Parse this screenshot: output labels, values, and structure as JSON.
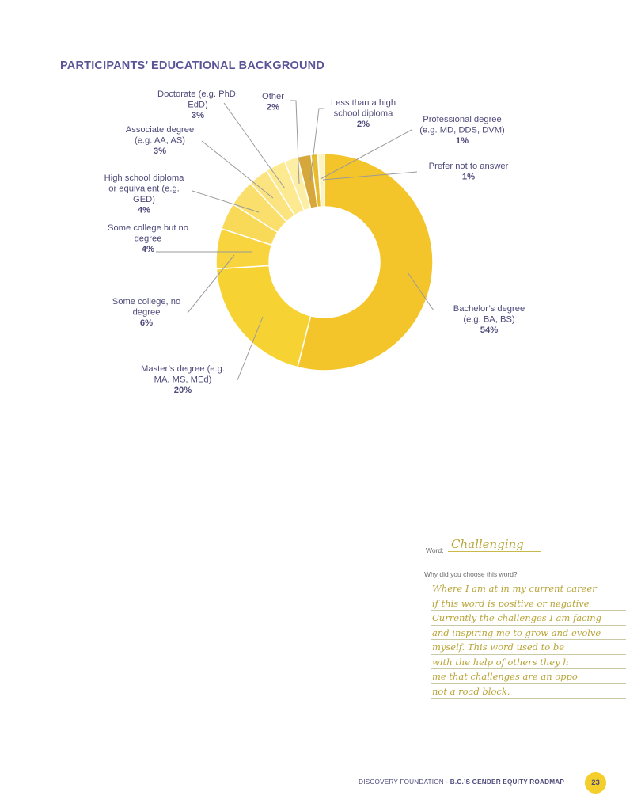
{
  "page": {
    "title": "PARTICIPANTS’ EDUCATIONAL BACKGROUND",
    "footer_org": "DISCOVERY FOUNDATION",
    "footer_sep": " - ",
    "footer_doc": "B.C.’S GENDER EQUITY ROADMAP",
    "page_number": "23"
  },
  "chart_data": {
    "type": "pie",
    "donut": true,
    "title": "PARTICIPANTS’ EDUCATIONAL BACKGROUND",
    "slices": [
      {
        "label_lines": [
          "Bachelor’s degree",
          "(e.g. BA, BS)"
        ],
        "pct_label": "54%",
        "value": 54,
        "color": "#f4c52b"
      },
      {
        "label_lines": [
          "Master’s degree (e.g.",
          "MA, MS, MEd)"
        ],
        "pct_label": "20%",
        "value": 20,
        "color": "#f7d233"
      },
      {
        "label_lines": [
          "Some college, no",
          "degree"
        ],
        "pct_label": "6%",
        "value": 6,
        "color": "#f8d43e"
      },
      {
        "label_lines": [
          "Some college but no",
          "degree"
        ],
        "pct_label": "4%",
        "value": 4,
        "color": "#f9da58"
      },
      {
        "label_lines": [
          "High school diploma",
          "or equivalent (e.g.",
          "GED)"
        ],
        "pct_label": "4%",
        "value": 4,
        "color": "#fadf6c"
      },
      {
        "label_lines": [
          "Associate degree",
          "(e.g. AA, AS)"
        ],
        "pct_label": "3%",
        "value": 3,
        "color": "#fbe47f"
      },
      {
        "label_lines": [
          "Doctorate (e.g. PhD,",
          "EdD)"
        ],
        "pct_label": "3%",
        "value": 3,
        "color": "#fce990"
      },
      {
        "label_lines": [
          "Other"
        ],
        "pct_label": "2%",
        "value": 2,
        "color": "#fdeea6"
      },
      {
        "label_lines": [
          "Less than a high",
          "school diploma"
        ],
        "pct_label": "2%",
        "value": 2,
        "color": "#d6a73a"
      },
      {
        "label_lines": [
          "Professional degree",
          "(e.g. MD, DDS, DVM)"
        ],
        "pct_label": "1%",
        "value": 1,
        "color": "#e8bb2c"
      },
      {
        "label_lines": [
          "Prefer not to answer"
        ],
        "pct_label": "1%",
        "value": 1,
        "color": "#fdf3c2"
      }
    ]
  },
  "card": {
    "word_label": "Word:",
    "word": "Challenging",
    "question": "Why did you choose this word?",
    "lines": [
      "Where I am at in my current career",
      "if this word is positive or negative",
      "Currently the challenges I am facing",
      "and inspiring me to grow and evolve",
      "myself. This word used to be",
      "with the help of others they h",
      "me that challenges are an oppo",
      "not a road block."
    ]
  }
}
